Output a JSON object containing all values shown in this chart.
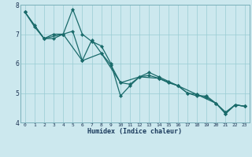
{
  "xlabel": "Humidex (Indice chaleur)",
  "xlim": [
    -0.5,
    23.5
  ],
  "ylim": [
    4,
    8
  ],
  "xticks": [
    0,
    1,
    2,
    3,
    4,
    5,
    6,
    7,
    8,
    9,
    10,
    11,
    12,
    13,
    14,
    15,
    16,
    17,
    18,
    19,
    20,
    21,
    22,
    23
  ],
  "yticks": [
    4,
    5,
    6,
    7,
    8
  ],
  "background_color": "#cce8ee",
  "grid_color": "#99ccd4",
  "line_color": "#1a6b6b",
  "line1_x": [
    0,
    1,
    2,
    3,
    4,
    5,
    6,
    7,
    8,
    9,
    10,
    11,
    12,
    13,
    14,
    15,
    16,
    17,
    18,
    19,
    20,
    21,
    22,
    23
  ],
  "line1_y": [
    7.75,
    7.25,
    6.85,
    7.0,
    7.0,
    7.85,
    7.0,
    6.75,
    6.6,
    6.0,
    4.9,
    5.25,
    5.55,
    5.6,
    5.5,
    5.35,
    5.25,
    5.0,
    4.9,
    4.9,
    4.65,
    4.35,
    4.6,
    4.55
  ],
  "line2_x": [
    0,
    1,
    2,
    3,
    4,
    5,
    6,
    7,
    8,
    9,
    10,
    11,
    12,
    13,
    14,
    15,
    16,
    17,
    18,
    19,
    20,
    21,
    22,
    23
  ],
  "line2_y": [
    7.75,
    7.3,
    6.85,
    6.85,
    7.0,
    7.1,
    6.1,
    6.8,
    6.35,
    5.95,
    5.35,
    5.3,
    5.55,
    5.7,
    5.55,
    5.4,
    5.25,
    5.0,
    4.95,
    4.85,
    4.65,
    4.3,
    4.6,
    4.55
  ],
  "line3_x": [
    0,
    2,
    4,
    6,
    8,
    10,
    12,
    14,
    16,
    18,
    20,
    21,
    22,
    23
  ],
  "line3_y": [
    7.75,
    6.85,
    7.0,
    6.1,
    6.35,
    5.35,
    5.55,
    5.5,
    5.25,
    4.95,
    4.65,
    4.3,
    4.6,
    4.55
  ]
}
